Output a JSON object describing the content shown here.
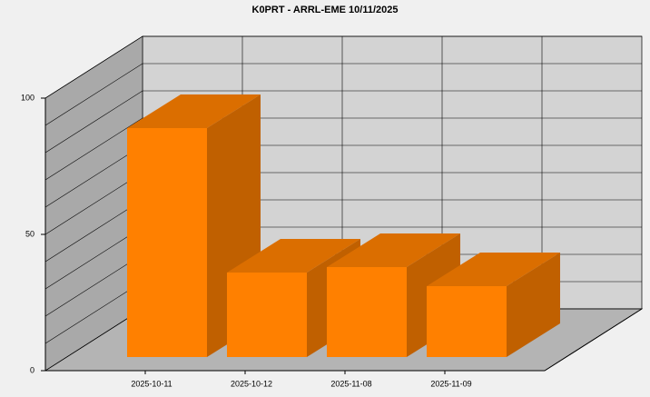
{
  "chart_data": {
    "type": "bar3d",
    "title": "K0PRT - ARRL-EME 10/11/2025",
    "categories": [
      "2025-10-11",
      "2025-10-12",
      "2025-11-08",
      "2025-11-09"
    ],
    "values": [
      84,
      31,
      33,
      26
    ],
    "ylim": [
      0,
      100
    ],
    "yticks": [
      0,
      50,
      100
    ],
    "ygrid": [
      0,
      10,
      20,
      30,
      40,
      50,
      60,
      70,
      80,
      90,
      100
    ],
    "grid": true,
    "colors": {
      "front": "#ff8000",
      "top": "#db6e00",
      "side": "#c06000",
      "left_wall": "#a9a9a9",
      "back_wall": "#d3d3d3",
      "floor": "#b4b4b4"
    }
  }
}
